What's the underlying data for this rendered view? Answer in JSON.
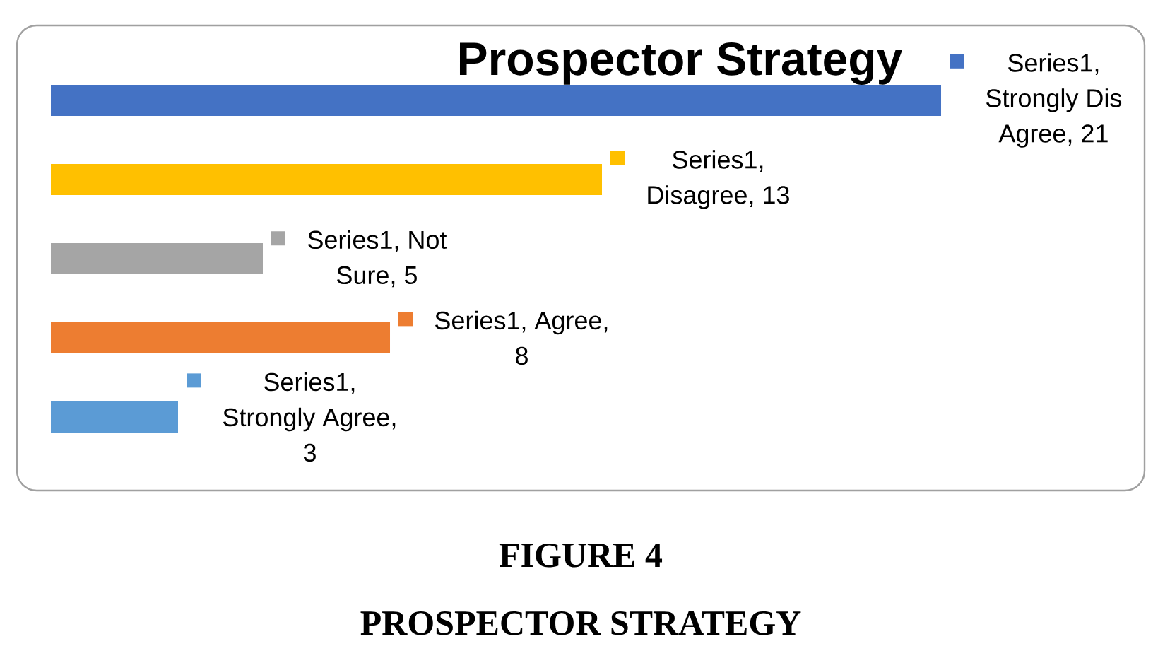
{
  "chart_data": {
    "type": "bar",
    "orientation": "horizontal",
    "title": "Prospector Strategy",
    "categories": [
      null,
      null,
      null,
      null,
      null
    ],
    "series": [
      {
        "values": [
          21,
          13,
          5,
          8,
          3
        ],
        "colors": [
          "#4472c4",
          "#ffc000",
          "#a5a5a5",
          "#ed7d31",
          "#5b9bd5"
        ],
        "value_labels": [
          "Series1, Strongly Dis Agree, 21",
          "Series1, Disagree, 13",
          "Series1, Not Sure, 5",
          "Series1, Agree, 8",
          "Series1, Strongly Agree, 3"
        ]
      }
    ],
    "annotations": [
      "FIGURE 4",
      "PROSPECTOR STRATEGY"
    ]
  }
}
